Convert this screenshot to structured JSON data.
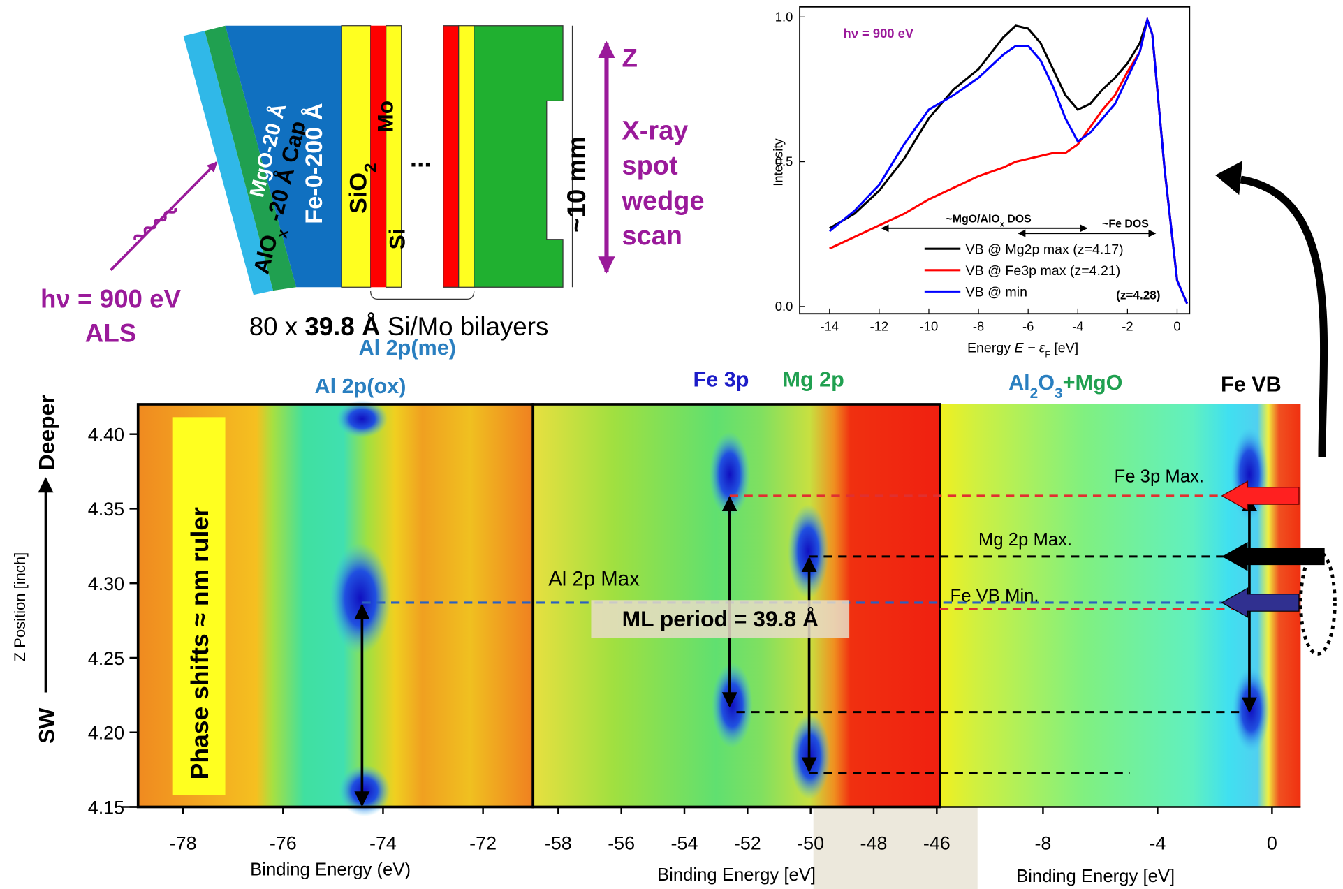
{
  "diagram": {
    "cap": [
      "AlO",
      "x",
      " -20 Å Cap"
    ],
    "mgo": "MgO-20 Å",
    "fe": "Fe-0-200 Å",
    "sio2": [
      "SiO",
      "2"
    ],
    "mo": "Mo",
    "si": "Si",
    "ellipsis": "...",
    "spot": "~10 mm",
    "z": "Z",
    "scan": [
      "X-ray",
      "spot",
      "wedge",
      "scan"
    ],
    "photon": "hν = 900 eV",
    "source": "ALS",
    "bilayers": [
      "80 x ",
      "39.8 Å",
      " Si/Mo bilayers"
    ]
  },
  "chart_data": [
    {
      "type": "line",
      "title": "hν = 900 eV",
      "xlabel": [
        "Energy  ",
        "E − ε",
        "F",
        " [eV]"
      ],
      "ylabel": "Intensity",
      "xlim": [
        -15.2,
        0.5
      ],
      "ylim": [
        -0.025,
        1.035
      ],
      "xticks": [
        -14,
        -12,
        -10,
        -8,
        -6,
        -4,
        -2,
        0
      ],
      "yticks": [
        {
          "value": 0,
          "label": "0.0"
        },
        {
          "value": 0.5,
          "label": "0.5"
        },
        {
          "value": 1,
          "label": "1.0"
        }
      ],
      "x": [
        -14,
        -13,
        -12,
        -11,
        -10,
        -9,
        -8,
        -7,
        -6.5,
        -6,
        -5.5,
        -5,
        -4.5,
        -4,
        -3.5,
        -3,
        -2.5,
        -2,
        -1.5,
        -1.2,
        -1,
        -0.5,
        0,
        0.4
      ],
      "series": [
        {
          "name": "VB @ Mg2p max (z=4.17)",
          "color": "#000000",
          "values": [
            0.27,
            0.32,
            0.4,
            0.51,
            0.65,
            0.75,
            0.82,
            0.93,
            0.97,
            0.96,
            0.91,
            0.82,
            0.73,
            0.68,
            0.7,
            0.75,
            0.79,
            0.84,
            0.91,
            0.99,
            0.94,
            0.47,
            0.09,
            0.01
          ]
        },
        {
          "name": "VB @ Fe3p max (z=4.21)",
          "color": "#ff0000",
          "values": [
            0.2,
            0.24,
            0.28,
            0.32,
            0.37,
            0.41,
            0.45,
            0.48,
            0.5,
            0.51,
            0.52,
            0.53,
            0.53,
            0.56,
            0.62,
            0.68,
            0.73,
            0.81,
            0.88,
            0.99,
            0.94,
            0.47,
            0.09,
            0.01
          ]
        },
        {
          "name": "VB @ min",
          "color": "#0000ff",
          "values": [
            0.26,
            0.33,
            0.42,
            0.56,
            0.68,
            0.73,
            0.79,
            0.87,
            0.9,
            0.9,
            0.85,
            0.76,
            0.65,
            0.57,
            0.6,
            0.65,
            0.7,
            0.79,
            0.88,
            0.99,
            0.94,
            0.47,
            0.09,
            0.01
          ]
        }
      ],
      "legend": "bottom-right",
      "annotations": [
        [
          "~MgO/AlO",
          "x",
          " DOS"
        ],
        "~Fe DOS",
        "(z=4.28)"
      ]
    },
    {
      "type": "heatmap",
      "xlim": [
        -78.9,
        -71.0
      ],
      "ylim": [
        4.15,
        4.42
      ],
      "xticks": [
        -78,
        -76,
        -74,
        -72
      ],
      "yticks": [
        4.15,
        {
          "value": 4.2,
          "label": "4.20"
        },
        4.25,
        {
          "value": 4.3,
          "label": "4.30"
        },
        4.35,
        {
          "value": 4.4,
          "label": "4.40"
        }
      ],
      "xlabel": "Binding Energy (eV)",
      "ylabel": "Z Position [inch]",
      "y_arrow": [
        "SW",
        "Deeper"
      ],
      "labels": [
        [
          {
            "text": "Al 2p(me)",
            "color": "#2a7fc0"
          }
        ],
        [
          {
            "text": "Al 2p(ox)",
            "color": "#2a7fc0"
          }
        ]
      ],
      "annotations": [
        "Phase shifts ≈ nm ruler",
        "Al 2p Max",
        "ML period = 39.8 Å"
      ]
    },
    {
      "type": "heatmap",
      "xlim": [
        -58.8,
        -45.9
      ],
      "ylim": [
        4.15,
        4.42
      ],
      "xticks": [
        -58,
        -56,
        -54,
        -52,
        -50,
        -48,
        -46
      ],
      "xlabel": "Binding Energy [eV]",
      "labels": [
        [
          {
            "text": "Fe 3p",
            "color": "#1c1cc8"
          }
        ],
        [
          {
            "text": "Mg 2p",
            "color": "#20a050"
          }
        ]
      ]
    },
    {
      "type": "heatmap",
      "xlim": [
        -11.6,
        1.0
      ],
      "ylim": [
        4.15,
        4.42
      ],
      "xticks": [
        -8,
        -4,
        0
      ],
      "xlabel": "Binding Energy [eV]",
      "labels": [
        [
          {
            "text": "Al",
            "color": "#2a7fc0"
          },
          {
            "text": "2",
            "color": "#2a7fc0",
            "sub": true
          },
          {
            "text": "O",
            "color": "#2a7fc0"
          },
          {
            "text": "3",
            "color": "#2a7fc0",
            "sub": true
          },
          {
            "text": "+MgO",
            "color": "#20a050"
          }
        ],
        [
          {
            "text": "Fe VB",
            "color": "#000000"
          }
        ]
      ],
      "annotations": [
        "Fe 3p Max.",
        "Mg 2p Max.",
        "Fe VB Min."
      ]
    }
  ]
}
